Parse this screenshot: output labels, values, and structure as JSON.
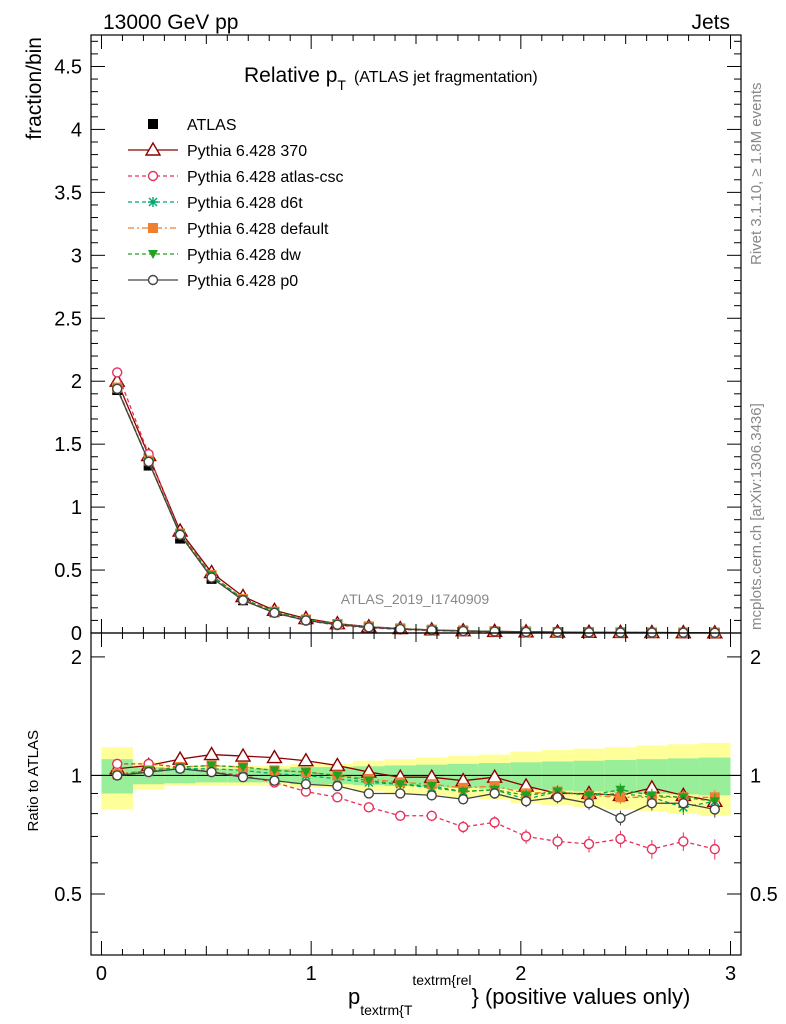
{
  "header": {
    "energy_label": "13000 GeV pp",
    "category_label": "Jets"
  },
  "side_labels": {
    "rivet": "Rivet 3.1.10, ≥ 1.8M events",
    "site": "mcplots.cern.ch [arXiv:1306.3436]"
  },
  "watermark": "ATLAS_2019_I1740909",
  "chart_data": {
    "type": "scatter",
    "title_main": "Relative p",
    "title_sub": "T",
    "title_note": "(ATLAS jet fragmentation)",
    "ylabel": "fraction/bin",
    "ratio_ylabel": "Ratio to ATLAS",
    "xlabel_main": "p",
    "xlabel_sub": "textrm{T",
    "xlabel_sup": "textrm{rel",
    "xlabel_tail": "} (positive values only)",
    "xlim": [
      -0.05,
      3.05
    ],
    "ylim": [
      0,
      4.75
    ],
    "ratio_ylim": [
      0.35,
      2.3
    ],
    "x_ticks": [
      "0",
      "1",
      "2",
      "3"
    ],
    "y_ticks": [
      "0",
      "0.5",
      "1",
      "1.5",
      "2",
      "2.5",
      "3",
      "3.5",
      "4",
      "4.5"
    ],
    "ratio_y_ticks": [
      "0.5",
      "1",
      "2"
    ],
    "grid": false,
    "legend_position": "top-left",
    "x": [
      0.075,
      0.225,
      0.375,
      0.525,
      0.675,
      0.825,
      0.975,
      1.125,
      1.275,
      1.425,
      1.575,
      1.725,
      1.875,
      2.025,
      2.175,
      2.325,
      2.475,
      2.625,
      2.775,
      2.925
    ],
    "band_inner_half": [
      0.1,
      0.05,
      0.045,
      0.04,
      0.04,
      0.04,
      0.05,
      0.05,
      0.055,
      0.06,
      0.065,
      0.07,
      0.075,
      0.08,
      0.085,
      0.09,
      0.095,
      0.1,
      0.105,
      0.11
    ],
    "band_outer_half": [
      0.18,
      0.08,
      0.06,
      0.06,
      0.06,
      0.06,
      0.07,
      0.07,
      0.09,
      0.1,
      0.11,
      0.12,
      0.13,
      0.15,
      0.16,
      0.17,
      0.18,
      0.19,
      0.2,
      0.21
    ],
    "series": [
      {
        "name": "ATLAS",
        "color": "#000000",
        "marker": "square",
        "dash": "none",
        "values": [
          1.93,
          1.33,
          0.75,
          0.43,
          0.26,
          0.165,
          0.105,
          0.07,
          0.05,
          0.035,
          0.025,
          0.018,
          0.013,
          0.01,
          0.008,
          0.006,
          0.005,
          0.004,
          0.003,
          0.002
        ],
        "ratio": [
          1.0,
          1.0,
          1.0,
          1.0,
          1.0,
          1.0,
          1.0,
          1.0,
          1.0,
          1.0,
          1.0,
          1.0,
          1.0,
          1.0,
          1.0,
          1.0,
          1.0,
          1.0,
          1.0,
          1.0
        ]
      },
      {
        "name": "Pythia 6.428 370",
        "color": "#8b0000",
        "marker": "triangle-open",
        "dash": "none",
        "values": [
          2.0,
          1.41,
          0.81,
          0.48,
          0.29,
          0.18,
          0.115,
          0.074,
          0.05,
          0.035,
          0.025,
          0.018,
          0.013,
          0.01,
          0.008,
          0.006,
          0.005,
          0.004,
          0.003,
          0.002
        ],
        "ratio": [
          1.04,
          1.06,
          1.1,
          1.13,
          1.12,
          1.11,
          1.09,
          1.06,
          1.02,
          0.99,
          0.99,
          0.97,
          0.99,
          0.94,
          0.9,
          0.9,
          0.89,
          0.93,
          0.89,
          0.86
        ]
      },
      {
        "name": "Pythia 6.428 atlas-csc",
        "color": "#e8305a",
        "marker": "circle-open",
        "dash": "4,3",
        "values": [
          2.07,
          1.42,
          0.79,
          0.46,
          0.26,
          0.16,
          0.098,
          0.062,
          0.041,
          0.028,
          0.02,
          0.013,
          0.01,
          0.007,
          0.005,
          0.004,
          0.003,
          0.0027,
          0.002,
          0.0014
        ],
        "ratio": [
          1.07,
          1.07,
          1.05,
          1.02,
          1.0,
          0.96,
          0.91,
          0.88,
          0.83,
          0.79,
          0.79,
          0.74,
          0.76,
          0.7,
          0.68,
          0.67,
          0.69,
          0.65,
          0.68,
          0.65
        ]
      },
      {
        "name": "Pythia 6.428 d6t",
        "color": "#00a86b",
        "marker": "star",
        "dash": "4,3",
        "values": [
          1.94,
          1.36,
          0.78,
          0.45,
          0.27,
          0.17,
          0.106,
          0.07,
          0.049,
          0.034,
          0.024,
          0.017,
          0.012,
          0.009,
          0.007,
          0.0053,
          0.0045,
          0.0035,
          0.0026,
          0.0017
        ],
        "ratio": [
          1.0,
          1.02,
          1.04,
          1.04,
          1.03,
          1.01,
          1.0,
          0.98,
          0.96,
          0.95,
          0.93,
          0.91,
          0.92,
          0.87,
          0.91,
          0.89,
          0.9,
          0.88,
          0.83,
          0.86
        ]
      },
      {
        "name": "Pythia 6.428 default",
        "color": "#f08030",
        "marker": "square",
        "dash": "6,3,2,3",
        "values": [
          1.95,
          1.37,
          0.79,
          0.46,
          0.27,
          0.17,
          0.107,
          0.071,
          0.049,
          0.034,
          0.025,
          0.017,
          0.013,
          0.009,
          0.007,
          0.0054,
          0.0045,
          0.0036,
          0.0027,
          0.0018
        ],
        "ratio": [
          1.01,
          1.03,
          1.05,
          1.06,
          1.05,
          1.03,
          1.02,
          1.0,
          0.98,
          0.96,
          0.95,
          0.93,
          0.94,
          0.9,
          0.91,
          0.89,
          0.88,
          0.88,
          0.88,
          0.88
        ]
      },
      {
        "name": "Pythia 6.428 dw",
        "color": "#22a022",
        "marker": "triangle-down",
        "dash": "4,3",
        "values": [
          1.94,
          1.36,
          0.79,
          0.46,
          0.27,
          0.17,
          0.107,
          0.071,
          0.049,
          0.034,
          0.024,
          0.017,
          0.012,
          0.009,
          0.007,
          0.0054,
          0.0046,
          0.0035,
          0.0027,
          0.0017
        ],
        "ratio": [
          1.0,
          1.03,
          1.05,
          1.06,
          1.05,
          1.03,
          1.02,
          1.0,
          0.97,
          0.95,
          0.94,
          0.91,
          0.92,
          0.89,
          0.91,
          0.89,
          0.92,
          0.89,
          0.88,
          0.86
        ]
      },
      {
        "name": "Pythia 6.428 p0",
        "color": "#444444",
        "marker": "circle-open",
        "dash": "none",
        "values": [
          1.94,
          1.36,
          0.78,
          0.44,
          0.26,
          0.16,
          0.1,
          0.066,
          0.045,
          0.031,
          0.022,
          0.015,
          0.012,
          0.0087,
          0.0071,
          0.0051,
          0.0039,
          0.0034,
          0.0026,
          0.0016
        ],
        "ratio": [
          1.0,
          1.02,
          1.04,
          1.02,
          0.99,
          0.97,
          0.95,
          0.94,
          0.9,
          0.9,
          0.89,
          0.87,
          0.9,
          0.86,
          0.88,
          0.85,
          0.78,
          0.85,
          0.85,
          0.82
        ]
      }
    ]
  }
}
